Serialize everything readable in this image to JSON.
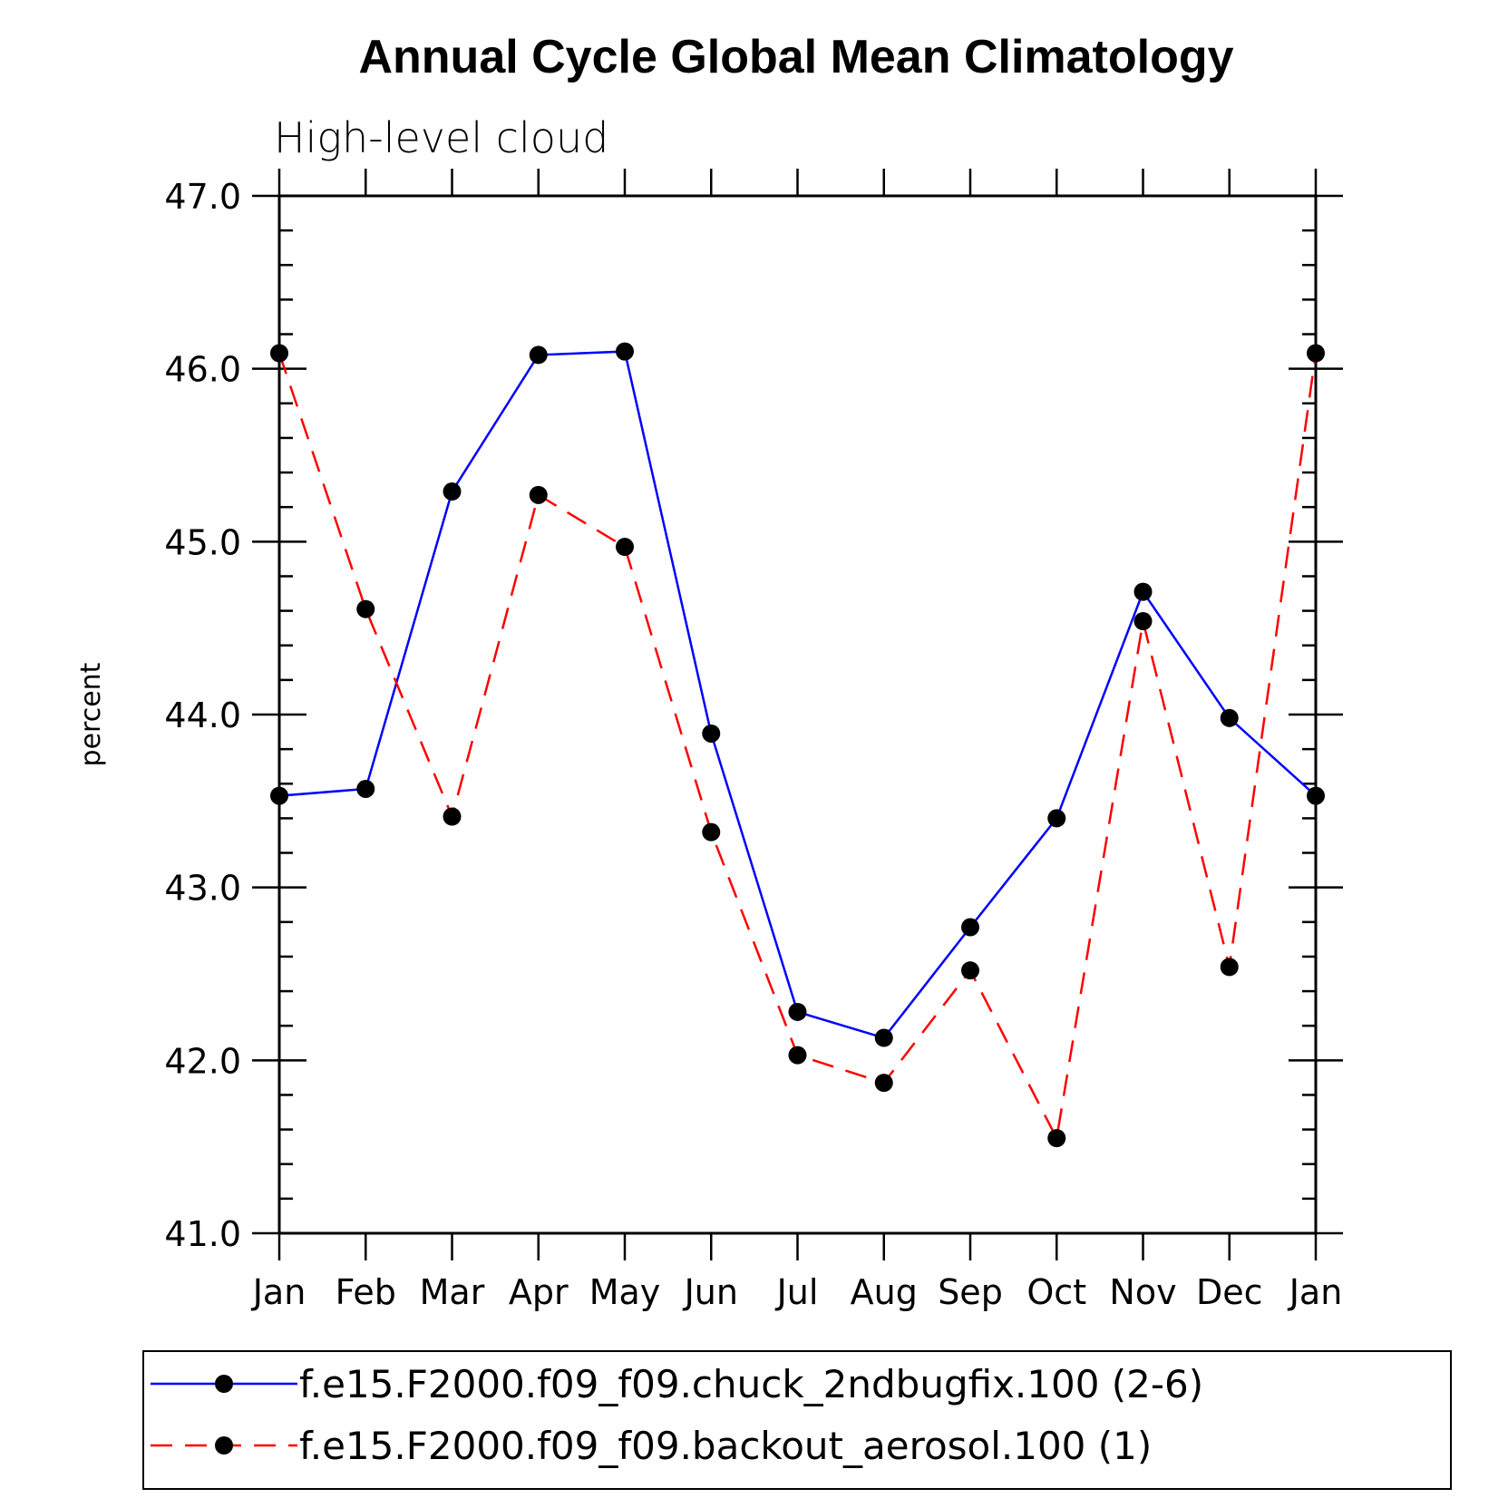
{
  "chart_data": {
    "type": "line",
    "title": "Annual Cycle Global Mean Climatology",
    "subtitle": "High-level cloud",
    "xlabel": "",
    "ylabel": "percent",
    "ylim": [
      41.0,
      47.0
    ],
    "yticks": [
      "41.0",
      "42.0",
      "43.0",
      "44.0",
      "45.0",
      "46.0",
      "47.0"
    ],
    "categories": [
      "Jan",
      "Feb",
      "Mar",
      "Apr",
      "May",
      "Jun",
      "Jul",
      "Aug",
      "Sep",
      "Oct",
      "Nov",
      "Dec",
      "Jan"
    ],
    "series": [
      {
        "name": "f.e15.F2000.f09_f09.chuck_2ndbugfix.100 (2-6)",
        "color": "#0000ff",
        "dash": "solid",
        "values": [
          43.53,
          43.57,
          45.29,
          46.08,
          46.1,
          43.89,
          42.28,
          42.13,
          42.77,
          43.4,
          44.71,
          43.98,
          43.53
        ]
      },
      {
        "name": "f.e15.F2000.f09_f09.backout_aerosol.100 (1)",
        "color": "#ff0000",
        "dash": "dashed",
        "values": [
          46.09,
          44.61,
          43.41,
          45.27,
          44.97,
          43.32,
          42.03,
          41.87,
          42.52,
          41.55,
          44.54,
          42.54,
          46.09
        ]
      }
    ],
    "legend_position": "bottom"
  }
}
